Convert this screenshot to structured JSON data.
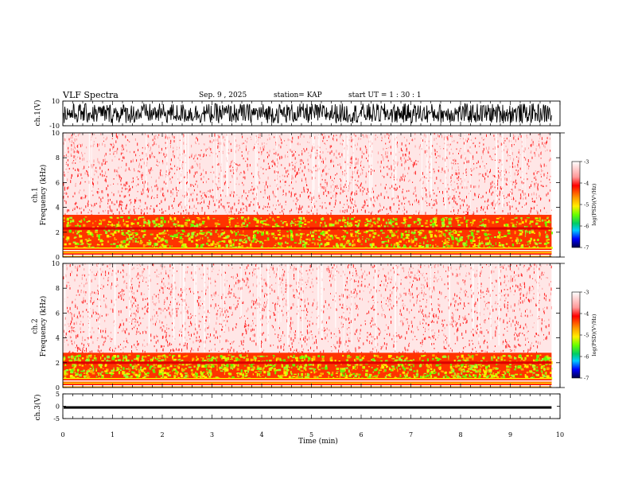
{
  "header": {
    "title": "VLF Spectra",
    "date": "Sep. 9 , 2025",
    "station": "station= KAP",
    "start": "start UT = 1 : 30 : 1"
  },
  "colors": {
    "spectrum": [
      "#ffffff",
      "#ff0000",
      "#ffcc00",
      "#66ff00",
      "#00ccff",
      "#0000ff",
      "#000033"
    ],
    "line": "#000000"
  },
  "chart_data": [
    {
      "type": "line",
      "panel": "ch1-waveform",
      "ylabel": "ch.1(V)",
      "ylim": [
        -10,
        10
      ],
      "yticks": [
        10,
        -10
      ],
      "description_data": {
        "amplitude_range_V": [
          -8,
          8
        ]
      }
    },
    {
      "type": "heatmap",
      "panel": "ch1-spectrogram",
      "ylabel": "ch.1\nFrequency (kHz)",
      "ylim": [
        0,
        10
      ],
      "yticks": [
        0,
        2,
        4,
        6,
        8,
        10
      ],
      "band_upper_kHz": 3.4,
      "strong_line_kHz": 2.3,
      "colorbar": {
        "label": "log(PSD)(V²/Hz)",
        "range": [
          -7,
          -3
        ],
        "ticks": [
          -3,
          -4,
          -5,
          -6,
          -7
        ]
      }
    },
    {
      "type": "heatmap",
      "panel": "ch2-spectrogram",
      "ylabel": "ch.2\nFrequency (kHz)",
      "ylim": [
        0,
        10
      ],
      "yticks": [
        0,
        2,
        4,
        6,
        8,
        10
      ],
      "band_upper_kHz": 2.8,
      "strong_line_kHz": 2.0,
      "colorbar": {
        "label": "log(PSD)(V²/Hz)",
        "range": [
          -7,
          -3
        ],
        "ticks": [
          -3,
          -4,
          -5,
          -6,
          -7
        ]
      }
    },
    {
      "type": "line",
      "panel": "ch3-waveform",
      "ylabel": "ch.3(V)",
      "ylim": [
        -5,
        5
      ],
      "yticks": [
        5,
        0,
        -5
      ],
      "description_data": {
        "mean_V": -0.5,
        "amplitude_range_V": [
          -1,
          0
        ]
      }
    }
  ],
  "xaxis": {
    "label": "Time (min)",
    "range": [
      0,
      10
    ],
    "ticks": [
      "0",
      "1",
      "2",
      "3",
      "4",
      "5",
      "6",
      "7",
      "8",
      "9",
      "10"
    ],
    "data_end_min": 9.83
  }
}
